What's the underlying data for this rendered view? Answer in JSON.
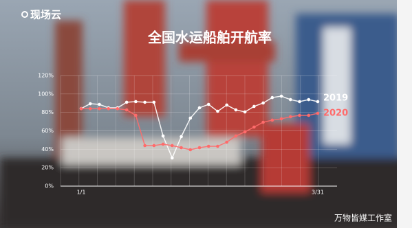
{
  "logo": "现场云",
  "watermark": "万物皆媒工作室",
  "chart_data": {
    "type": "line",
    "title": "全国水运船舶开航率",
    "categories": [
      "1/1",
      null,
      null,
      null,
      null,
      null,
      null,
      null,
      null,
      null,
      null,
      null,
      null,
      null,
      null,
      null,
      null,
      null,
      null,
      null,
      null,
      null,
      null,
      null,
      null,
      null,
      "3/31"
    ],
    "series": [
      {
        "name": "2019",
        "color": "#ffffff",
        "values": [
          84.2,
          89.4,
          88.7,
          85,
          85,
          91,
          91.7,
          91,
          91,
          54.4,
          30.6,
          53.7,
          73.8,
          85,
          88.7,
          81.2,
          88,
          82.7,
          80.5,
          86.5,
          90.2,
          96.1,
          97.6,
          93.9,
          91.7,
          93.9,
          91.7
        ]
      },
      {
        "name": "2020",
        "color": "#ff6b6b",
        "values": [
          84,
          84,
          84,
          84,
          84,
          82.7,
          76.8,
          44,
          44,
          45.5,
          44,
          41.7,
          39.5,
          41.7,
          43.2,
          43.2,
          47.7,
          54.4,
          58.9,
          64.1,
          69.3,
          71.6,
          73,
          75.3,
          76.8,
          76.8,
          79
        ]
      }
    ],
    "ylim": [
      0,
      120
    ],
    "yticks": [
      {
        "value": 0,
        "label": "0%"
      },
      {
        "value": 20,
        "label": "20%"
      },
      {
        "value": 40,
        "label": "40%"
      },
      {
        "value": 60,
        "label": "60%"
      },
      {
        "value": 80,
        "label": "80%"
      },
      {
        "value": 100,
        "label": "100%"
      },
      {
        "value": 120,
        "label": "120%"
      }
    ],
    "grid": true
  }
}
